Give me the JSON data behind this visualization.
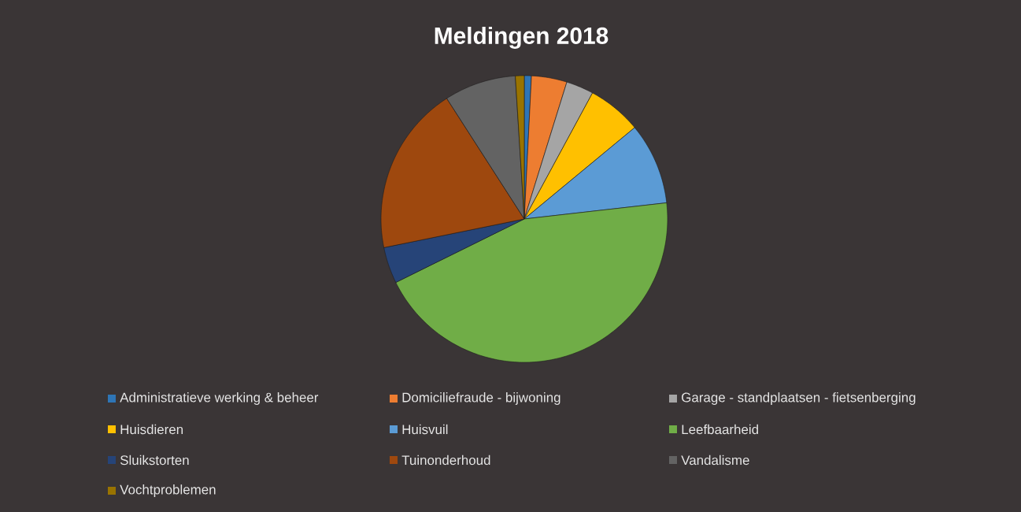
{
  "chart_data": {
    "type": "pie",
    "title": "Meldingen 2018",
    "categories": [
      "Administratieve werking & beheer",
      "Domiciliefraude - bijwoning",
      "Garage - standplaatsen - fietsenberging",
      "Huisdieren",
      "Huisvuil",
      "Leefbaarheid",
      "Sluikstorten",
      "Tuinonderhoud",
      "Vandalisme",
      "Vochtproblemen"
    ],
    "values": [
      0.8,
      4.0,
      3.1,
      6.1,
      9.2,
      44.5,
      4.1,
      19.1,
      8.1,
      1.0
    ],
    "colors": [
      "#2e75b6",
      "#ed7d31",
      "#a5a5a5",
      "#ffc000",
      "#5b9bd5",
      "#70ad47",
      "#264478",
      "#9e480e",
      "#636363",
      "#997300"
    ],
    "legend": "bottom"
  }
}
